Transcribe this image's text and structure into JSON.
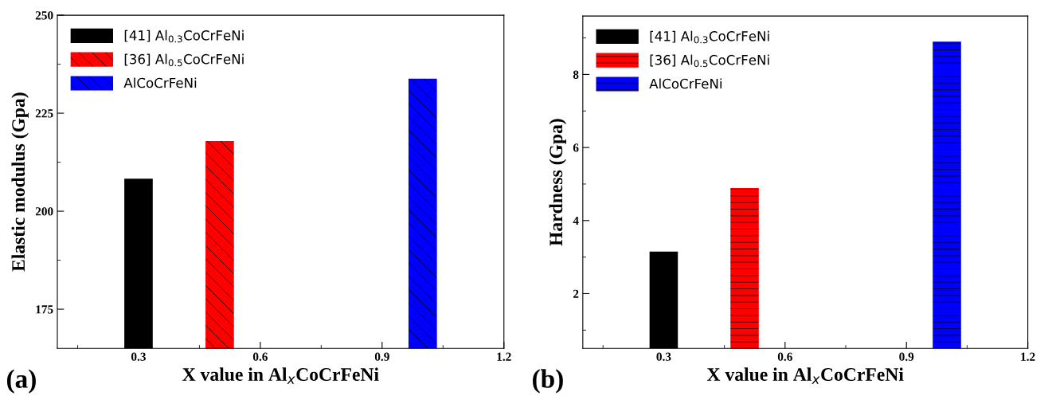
{
  "chart_data": [
    {
      "type": "bar",
      "xlabel": "X value in Al$_{x}$CoCrFeNi",
      "ylabel": "Elastic modulus (Gpa)",
      "xlim": [
        0.1,
        1.2
      ],
      "xticks": [
        0.3,
        0.6,
        0.9,
        1.2
      ],
      "ylim": [
        165,
        250
      ],
      "yticks": [
        175,
        200,
        225,
        250
      ],
      "legend": "top left",
      "grid": false,
      "annotations": [
        "(a)"
      ],
      "series": [
        {
          "name": "[41] Al$_{0.3}$CoCrFeNi",
          "color": "#000000",
          "x": [
            0.3
          ],
          "values": [
            208.3
          ]
        },
        {
          "name": "[36] Al$_{0.5}$CoCrFeNi",
          "color": "#ff0000",
          "x": [
            0.5
          ],
          "values": [
            217.9
          ]
        },
        {
          "name": "AlCoCrFeNi",
          "color": "#0000ff",
          "x": [
            1.0
          ],
          "values": [
            233.8
          ]
        }
      ]
    },
    {
      "type": "bar",
      "xlabel": "X value in Al$_{x}$CoCrFeNi",
      "ylabel": "Hardness (Gpa)",
      "xlim": [
        0.1,
        1.2
      ],
      "xticks": [
        0.3,
        0.6,
        0.9,
        1.2
      ],
      "ylim": [
        0.5,
        9.6
      ],
      "yticks": [
        2,
        4,
        6,
        8
      ],
      "legend": "top left",
      "grid": false,
      "annotations": [
        "(b)"
      ],
      "series": [
        {
          "name": "[41] Al$_{0.3}$CoCrFeNi",
          "color": "#000000",
          "x": [
            0.3
          ],
          "values": [
            3.15
          ]
        },
        {
          "name": "[36] Al$_{0.5}$CoCrFeNi",
          "color": "#ff0000",
          "x": [
            0.5
          ],
          "values": [
            4.89
          ]
        },
        {
          "name": "AlCoCrFeNi",
          "color": "#0000ff",
          "x": [
            1.0
          ],
          "values": [
            8.9
          ]
        }
      ]
    }
  ]
}
